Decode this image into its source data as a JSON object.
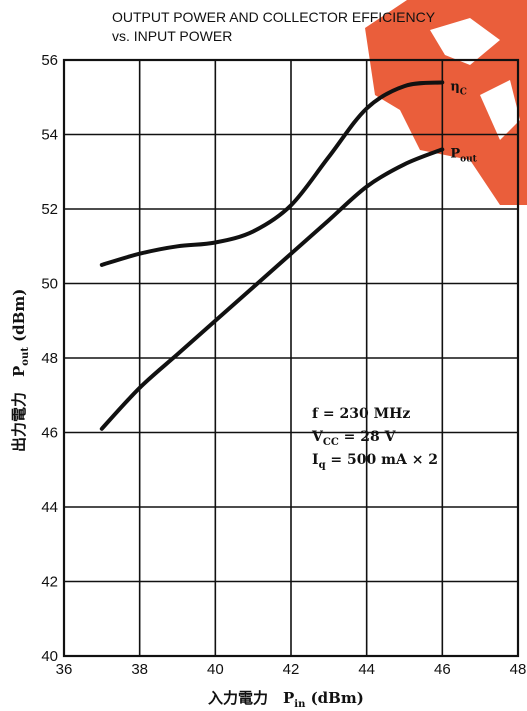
{
  "chart_data": {
    "type": "line",
    "title_lines": [
      "OUTPUT POWER AND COLLECTOR EFFICIENCY",
      "vs. INPUT POWER"
    ],
    "xlabel": {
      "main": "入力電力　P",
      "sub": "in",
      "unit": " (dBm)"
    },
    "ylabel": {
      "main": "出力電力　P",
      "sub": "out",
      "unit": " (dBm)"
    },
    "xlim": [
      36,
      48
    ],
    "ylim": [
      40,
      56
    ],
    "x_ticks": [
      36,
      38,
      40,
      42,
      44,
      46,
      48
    ],
    "y_ticks": [
      40,
      42,
      44,
      46,
      48,
      50,
      52,
      54,
      56
    ],
    "grid": true,
    "series": [
      {
        "name": "η",
        "name_sub": "C",
        "x": [
          37,
          38,
          39,
          40,
          41,
          42,
          43,
          44,
          45,
          46
        ],
        "y": [
          50.5,
          50.8,
          51.0,
          51.1,
          51.4,
          52.1,
          53.4,
          54.7,
          55.3,
          55.4
        ]
      },
      {
        "name": "P",
        "name_sub": "out",
        "x": [
          37,
          38,
          39,
          40,
          41,
          42,
          43,
          44,
          45,
          46
        ],
        "y": [
          46.1,
          47.2,
          48.1,
          49.0,
          49.9,
          50.8,
          51.7,
          52.6,
          53.2,
          53.6
        ]
      }
    ],
    "annotations": [
      {
        "text": "f = 230  MHz"
      },
      {
        "text": "V",
        "sub": "CC",
        "rest": " = 28  V"
      },
      {
        "text": "I",
        "sub": "q",
        "rest": " = 500  mA × 2"
      }
    ]
  }
}
